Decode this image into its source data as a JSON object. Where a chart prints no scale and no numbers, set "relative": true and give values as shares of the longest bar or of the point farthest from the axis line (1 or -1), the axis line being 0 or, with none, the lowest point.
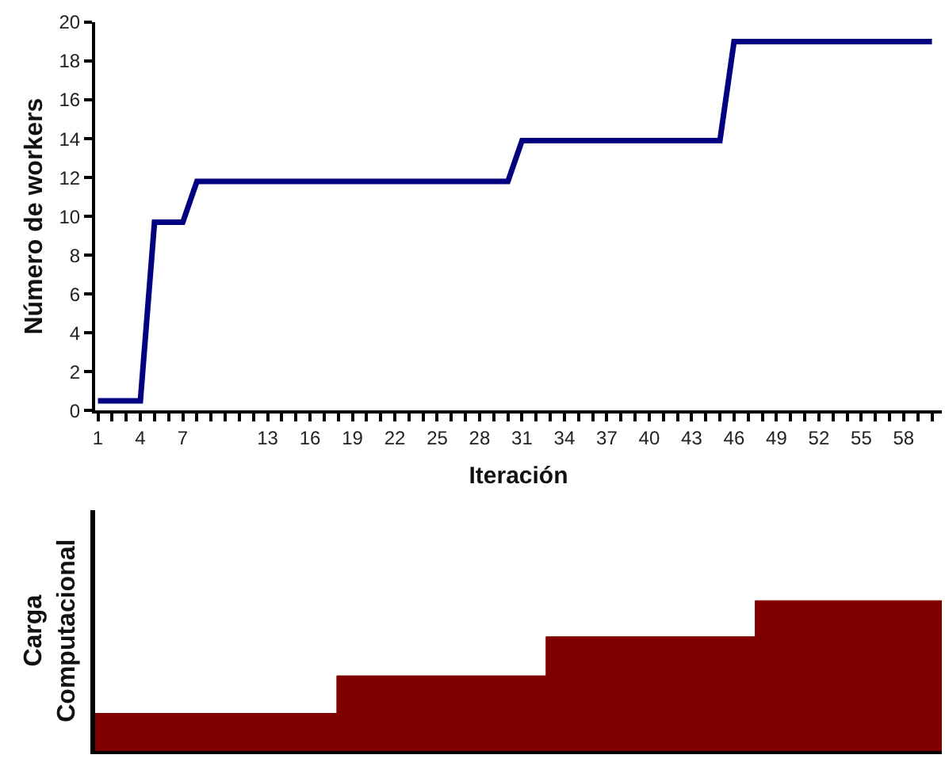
{
  "chart_data": [
    {
      "type": "line",
      "xlabel": "Iteración",
      "ylabel": "Número de workers",
      "x": [
        1,
        4,
        5,
        7,
        8,
        30,
        31,
        45,
        46,
        60
      ],
      "series": [
        {
          "color": "#000080",
          "values": [
            0.5,
            0.5,
            9.7,
            9.7,
            11.8,
            11.8,
            13.9,
            13.9,
            19,
            19
          ]
        }
      ],
      "xlim": [
        0.8,
        60.7
      ],
      "ylim": [
        0,
        20
      ],
      "yticks": [
        0,
        2,
        4,
        6,
        8,
        10,
        12,
        14,
        16,
        18,
        20
      ],
      "xticks": [
        1,
        {
          "value": 2,
          "label": null
        },
        {
          "value": 3,
          "label": null
        },
        4,
        {
          "value": 5,
          "label": null
        },
        {
          "value": 6,
          "label": null
        },
        7,
        {
          "value": 8,
          "label": null
        },
        {
          "value": 9,
          "label": null
        },
        {
          "value": 10,
          "label": null
        },
        {
          "value": 11,
          "label": null
        },
        {
          "value": 12,
          "label": null
        },
        13,
        {
          "value": 14,
          "label": null
        },
        {
          "value": 15,
          "label": null
        },
        16,
        {
          "value": 17,
          "label": null
        },
        {
          "value": 18,
          "label": null
        },
        19,
        {
          "value": 20,
          "label": null
        },
        {
          "value": 21,
          "label": null
        },
        22,
        {
          "value": 23,
          "label": null
        },
        {
          "value": 24,
          "label": null
        },
        25,
        {
          "value": 26,
          "label": null
        },
        {
          "value": 27,
          "label": null
        },
        28,
        {
          "value": 29,
          "label": null
        },
        {
          "value": 30,
          "label": null
        },
        31,
        {
          "value": 32,
          "label": null
        },
        {
          "value": 33,
          "label": null
        },
        34,
        {
          "value": 35,
          "label": null
        },
        {
          "value": 36,
          "label": null
        },
        37,
        {
          "value": 38,
          "label": null
        },
        {
          "value": 39,
          "label": null
        },
        40,
        {
          "value": 41,
          "label": null
        },
        {
          "value": 42,
          "label": null
        },
        43,
        {
          "value": 44,
          "label": null
        },
        {
          "value": 45,
          "label": null
        },
        46,
        {
          "value": 47,
          "label": null
        },
        {
          "value": 48,
          "label": null
        },
        49,
        {
          "value": 50,
          "label": null
        },
        {
          "value": 51,
          "label": null
        },
        52,
        {
          "value": 53,
          "label": null
        },
        {
          "value": 54,
          "label": null
        },
        55,
        {
          "value": 56,
          "label": null
        },
        {
          "value": 57,
          "label": null
        },
        58,
        {
          "value": 59,
          "label": null
        },
        {
          "value": 60,
          "label": null
        }
      ],
      "marker": "none",
      "line_style": "solid"
    },
    {
      "type": "area",
      "ylabel": "Carga\nComputacional",
      "relative": true,
      "x": [
        0.8,
        17.9,
        17.9,
        32.7,
        32.7,
        47.5,
        47.5,
        60.7
      ],
      "xlim": [
        0.8,
        60.7
      ],
      "series": [
        {
          "color": "#800000",
          "values": [
            0.25,
            0.25,
            0.5,
            0.5,
            0.76,
            0.76,
            1,
            1
          ]
        }
      ]
    }
  ]
}
